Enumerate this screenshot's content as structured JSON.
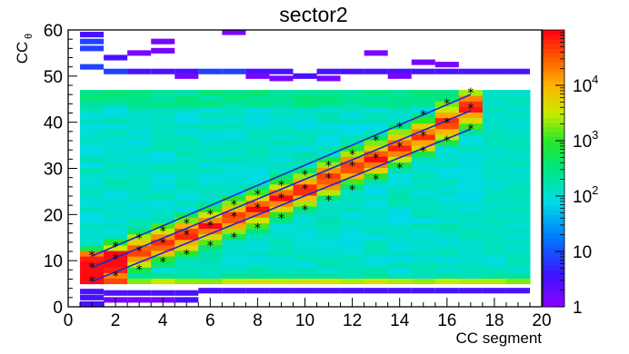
{
  "chart_data": {
    "type": "heatmap",
    "title": "sector2",
    "xlabel": "CC segment",
    "ylabel_main": "CC",
    "ylabel_sub": "θ",
    "xlim": [
      0,
      20
    ],
    "ylim": [
      0,
      60
    ],
    "x_ticks": [
      "0",
      "2",
      "4",
      "6",
      "8",
      "10",
      "12",
      "14",
      "16",
      "18",
      "20"
    ],
    "y_ticks": [
      "0",
      "10",
      "20",
      "30",
      "40",
      "50",
      "60"
    ],
    "z_scale": "log",
    "zlim": [
      1,
      100000
    ],
    "z_ticks": [
      "1",
      "10",
      "10^2",
      "10^3",
      "10^4"
    ],
    "x_bins": [
      0.5,
      1.5,
      2.5,
      3.5,
      4.5,
      5.5,
      6.5,
      7.5,
      8.5,
      9.5,
      10.5,
      11.5,
      12.5,
      13.5,
      14.5,
      15.5,
      16.5,
      17.5,
      18.5,
      19.5
    ],
    "y_bin_width": 1.2,
    "fit_lines": [
      {
        "x": [
          1,
          17
        ],
        "y": [
          5.5,
          38.5
        ]
      },
      {
        "x": [
          1,
          17
        ],
        "y": [
          8.5,
          42.5
        ]
      },
      {
        "x": [
          1,
          17
        ],
        "y": [
          11,
          46
        ]
      }
    ],
    "markers": {
      "x": [
        1,
        2,
        3,
        4,
        5,
        6,
        7,
        8,
        9,
        10,
        11,
        12,
        13,
        14,
        15,
        16,
        17
      ],
      "low": [
        5.5,
        6.6,
        8.0,
        9.6,
        11.3,
        13.2,
        15.0,
        17.0,
        19.1,
        21.0,
        23.0,
        25.3,
        27.5,
        30.0,
        33.6,
        35.9,
        38.5
      ],
      "mid": [
        8.5,
        10.3,
        12.0,
        13.8,
        15.5,
        17.5,
        19.5,
        21.3,
        23.5,
        25.5,
        27.8,
        30.5,
        32.2,
        34.6,
        37.0,
        39.8,
        43.0
      ],
      "high": [
        11.0,
        13.0,
        14.8,
        16.3,
        18.0,
        20.0,
        22.0,
        24.3,
        26.3,
        28.5,
        30.5,
        33.0,
        36.0,
        38.9,
        41.5,
        44.0,
        46.3
      ]
    },
    "sparse_cells": [
      [
        1,
        56,
        3
      ],
      [
        1,
        57.5,
        3
      ],
      [
        1,
        59,
        2
      ],
      [
        1,
        52,
        3
      ],
      [
        1,
        2,
        2
      ],
      [
        1,
        0.6,
        2
      ],
      [
        1,
        3.3,
        2
      ],
      [
        2,
        51,
        3
      ],
      [
        2,
        54,
        2
      ],
      [
        2,
        3,
        2
      ],
      [
        2,
        1.5,
        1
      ],
      [
        3,
        51,
        2
      ],
      [
        3,
        55,
        1
      ],
      [
        3,
        3,
        2
      ],
      [
        3,
        1.5,
        1
      ],
      [
        4,
        51,
        2
      ],
      [
        4,
        57.5,
        1
      ],
      [
        4,
        55.5,
        1
      ],
      [
        4,
        3,
        2
      ],
      [
        4,
        1.5,
        1
      ],
      [
        5,
        51,
        2
      ],
      [
        5,
        50,
        1
      ],
      [
        5,
        3,
        2
      ],
      [
        5,
        1.5,
        2
      ],
      [
        6,
        51,
        3
      ],
      [
        6,
        3.5,
        2
      ],
      [
        7,
        51,
        3
      ],
      [
        7,
        59.5,
        1
      ],
      [
        7,
        3.5,
        2
      ],
      [
        8,
        51,
        2
      ],
      [
        8,
        50,
        1
      ],
      [
        8,
        3.5,
        2
      ],
      [
        9,
        51,
        2
      ],
      [
        9,
        49.5,
        1
      ],
      [
        9,
        3.5,
        2
      ],
      [
        10,
        50,
        2
      ],
      [
        10,
        3.5,
        2
      ],
      [
        11,
        51,
        2
      ],
      [
        11,
        49.5,
        1
      ],
      [
        11,
        3.5,
        2
      ],
      [
        12,
        51,
        2
      ],
      [
        12,
        3.5,
        2
      ],
      [
        13,
        51,
        2
      ],
      [
        13,
        55,
        1
      ],
      [
        13,
        3.5,
        2
      ],
      [
        14,
        51,
        2
      ],
      [
        14,
        50,
        1
      ],
      [
        14,
        3.5,
        2
      ],
      [
        15,
        51,
        2
      ],
      [
        15,
        53,
        1
      ],
      [
        15,
        3.5,
        2
      ],
      [
        16,
        51,
        2
      ],
      [
        16,
        52.5,
        1
      ],
      [
        16,
        3.5,
        2
      ],
      [
        17,
        51,
        2
      ],
      [
        17,
        3.5,
        2
      ],
      [
        18,
        51,
        2
      ],
      [
        18,
        3.5,
        2
      ],
      [
        19,
        51,
        2
      ],
      [
        19,
        3.5,
        2
      ]
    ]
  }
}
